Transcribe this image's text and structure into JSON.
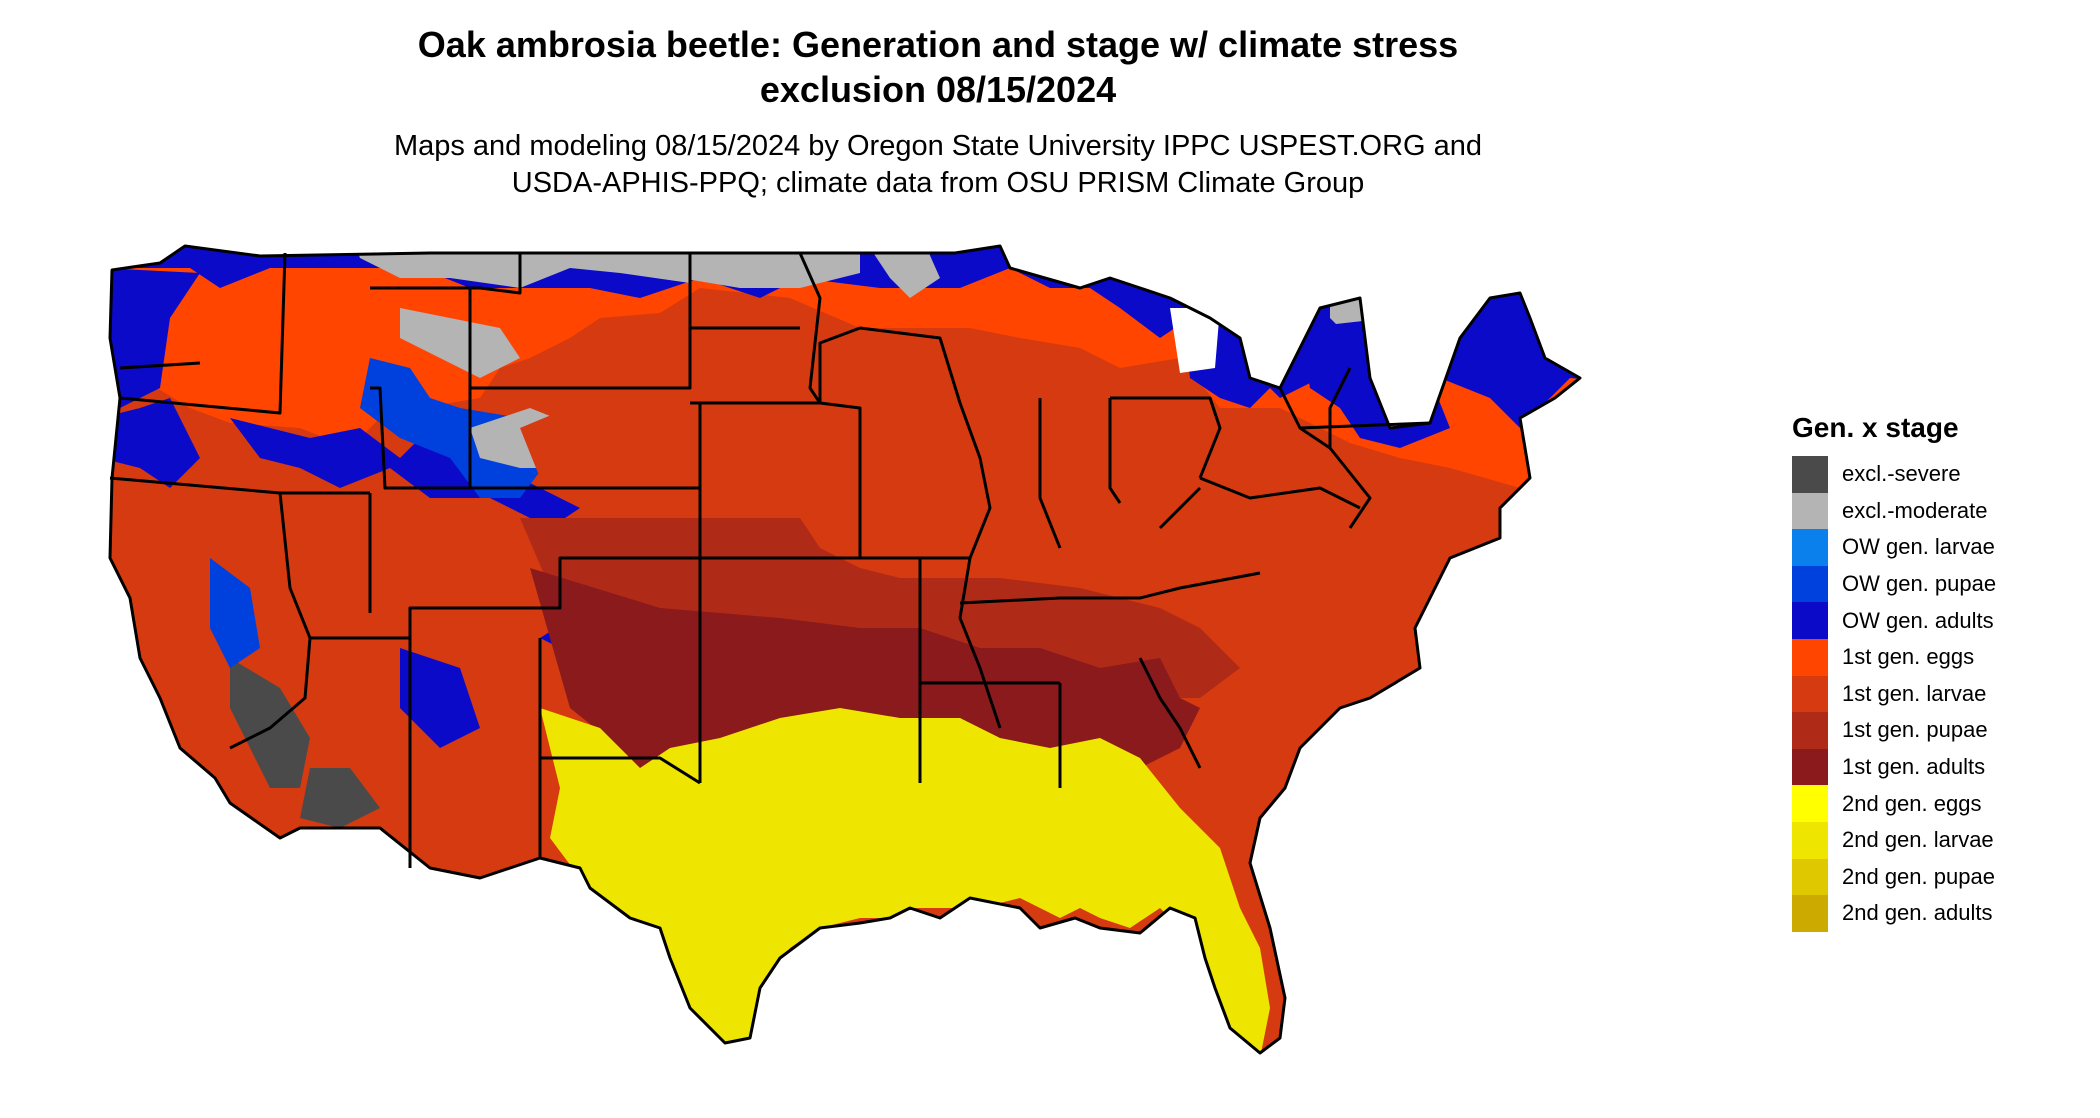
{
  "title_line1": "Oak ambrosia beetle: Generation and stage w/ climate stress",
  "title_line2": "exclusion 08/15/2024",
  "subtitle_line1": "Maps and modeling 08/15/2024 by Oregon State University IPPC USPEST.ORG and",
  "subtitle_line2": "USDA-APHIS-PPQ; climate data from OSU PRISM Climate Group",
  "legend": {
    "title": "Gen. x stage",
    "items": [
      {
        "label": "excl.-severe",
        "color": "#4a4a4a"
      },
      {
        "label": "excl.-moderate",
        "color": "#b4b4b4"
      },
      {
        "label": "OW gen. larvae",
        "color": "#0a80ec"
      },
      {
        "label": "OW gen. pupae",
        "color": "#0040dc"
      },
      {
        "label": "OW gen. adults",
        "color": "#0a0ac8"
      },
      {
        "label": "1st gen. eggs",
        "color": "#ff4500"
      },
      {
        "label": "1st gen. larvae",
        "color": "#d63a10"
      },
      {
        "label": "1st gen. pupae",
        "color": "#b02a18"
      },
      {
        "label": "1st gen. adults",
        "color": "#8a1a1c"
      },
      {
        "label": "2nd gen. eggs",
        "color": "#ffff00"
      },
      {
        "label": "2nd gen. larvae",
        "color": "#eee600"
      },
      {
        "label": "2nd gen. pupae",
        "color": "#e0c800"
      },
      {
        "label": "2nd gen. adults",
        "color": "#ccaa00"
      }
    ]
  }
}
